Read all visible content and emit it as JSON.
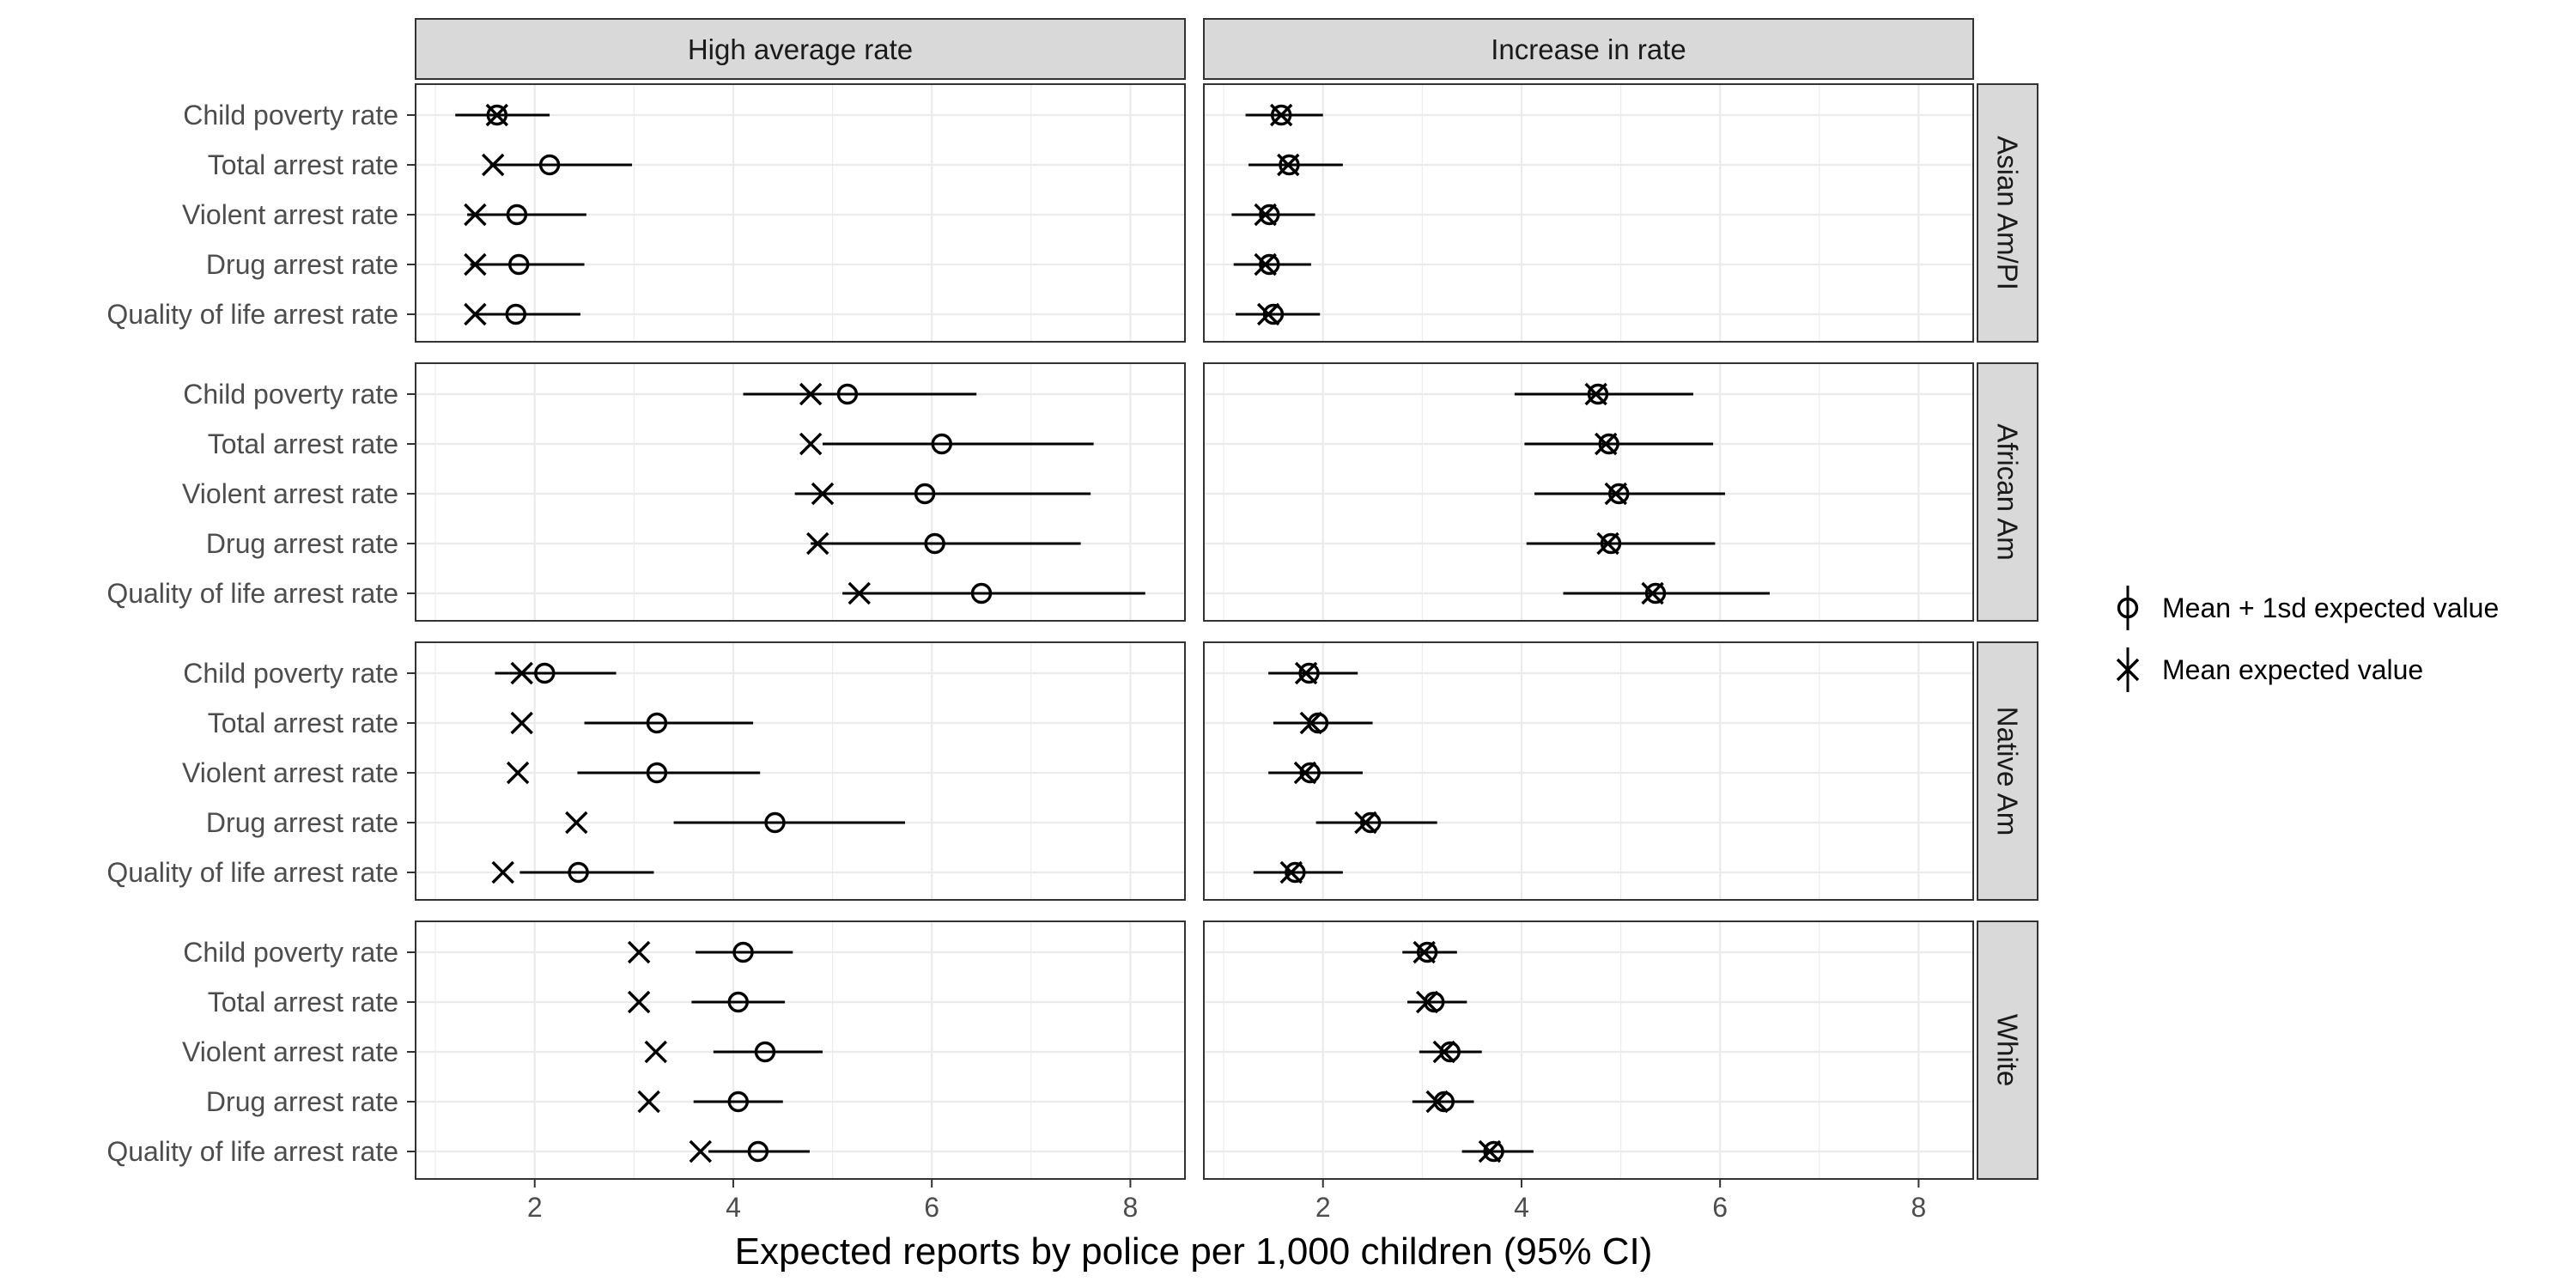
{
  "chart_data": {
    "type": "scatter",
    "xlabel": "Expected reports by police per 1,000 children (95% CI)",
    "xlim": [
      0.8,
      8.55
    ],
    "xticks": [
      2,
      4,
      6,
      8
    ],
    "columns": [
      "High average rate",
      "Increase in rate"
    ],
    "groups": [
      "Asian Am/PI",
      "African Am",
      "Native Am",
      "White"
    ],
    "categories": [
      "Child poverty rate",
      "Total arrest rate",
      "Violent arrest rate",
      "Drug arrest rate",
      "Quality of life arrest rate"
    ],
    "grid": true,
    "legend_position": "right",
    "legend": {
      "items": [
        {
          "marker": "circle",
          "label": "Mean + 1sd expected value"
        },
        {
          "marker": "x",
          "label": "Mean expected value"
        }
      ]
    },
    "series": [
      {
        "marker": "x",
        "group": "Asian Am/PI",
        "column": "High average rate",
        "values": [
          1.62,
          1.58,
          1.4,
          1.4,
          1.4
        ]
      },
      {
        "marker": "circle",
        "group": "Asian Am/PI",
        "column": "High average rate",
        "values": [
          1.62,
          2.15,
          1.82,
          1.84,
          1.81
        ],
        "ci_low": [
          1.2,
          1.55,
          1.32,
          1.35,
          1.38
        ],
        "ci_high": [
          2.15,
          2.98,
          2.52,
          2.5,
          2.46
        ]
      },
      {
        "marker": "x",
        "group": "Asian Am/PI",
        "column": "Increase in rate",
        "values": [
          1.58,
          1.65,
          1.42,
          1.42,
          1.45
        ]
      },
      {
        "marker": "circle",
        "group": "Asian Am/PI",
        "column": "Increase in rate",
        "values": [
          1.58,
          1.66,
          1.46,
          1.46,
          1.5
        ],
        "ci_low": [
          1.22,
          1.25,
          1.08,
          1.1,
          1.12
        ],
        "ci_high": [
          2.0,
          2.2,
          1.92,
          1.88,
          1.97
        ]
      },
      {
        "marker": "x",
        "group": "African Am",
        "column": "High average rate",
        "values": [
          4.78,
          4.78,
          4.9,
          4.85,
          5.27
        ]
      },
      {
        "marker": "circle",
        "group": "African Am",
        "column": "High average rate",
        "values": [
          5.15,
          6.1,
          5.93,
          6.03,
          6.5
        ],
        "ci_low": [
          4.1,
          4.9,
          4.62,
          4.78,
          5.1
        ],
        "ci_high": [
          6.45,
          7.63,
          7.6,
          7.5,
          8.15
        ]
      },
      {
        "marker": "x",
        "group": "African Am",
        "column": "Increase in rate",
        "values": [
          4.75,
          4.85,
          4.95,
          4.87,
          5.32
        ]
      },
      {
        "marker": "circle",
        "group": "African Am",
        "column": "Increase in rate",
        "values": [
          4.77,
          4.88,
          4.98,
          4.9,
          5.35
        ],
        "ci_low": [
          3.93,
          4.03,
          4.13,
          4.05,
          4.42
        ],
        "ci_high": [
          5.73,
          5.93,
          6.05,
          5.95,
          6.5
        ]
      },
      {
        "marker": "x",
        "group": "Native Am",
        "column": "High average rate",
        "values": [
          1.87,
          1.87,
          1.83,
          2.42,
          1.68
        ]
      },
      {
        "marker": "circle",
        "group": "Native Am",
        "column": "High average rate",
        "values": [
          2.1,
          3.23,
          3.23,
          4.42,
          2.44
        ],
        "ci_low": [
          1.6,
          2.5,
          2.43,
          3.4,
          1.85
        ],
        "ci_high": [
          2.82,
          4.2,
          4.27,
          5.73,
          3.2
        ]
      },
      {
        "marker": "x",
        "group": "Native Am",
        "column": "Increase in rate",
        "values": [
          1.83,
          1.88,
          1.82,
          2.43,
          1.68
        ]
      },
      {
        "marker": "circle",
        "group": "Native Am",
        "column": "Increase in rate",
        "values": [
          1.86,
          1.95,
          1.87,
          2.48,
          1.72
        ],
        "ci_low": [
          1.45,
          1.5,
          1.45,
          1.93,
          1.3
        ],
        "ci_high": [
          2.35,
          2.5,
          2.4,
          3.15,
          2.2
        ]
      },
      {
        "marker": "x",
        "group": "White",
        "column": "High average rate",
        "values": [
          3.05,
          3.05,
          3.22,
          3.15,
          3.67
        ]
      },
      {
        "marker": "circle",
        "group": "White",
        "column": "High average rate",
        "values": [
          4.1,
          4.05,
          4.32,
          4.05,
          4.25
        ],
        "ci_low": [
          3.62,
          3.58,
          3.8,
          3.6,
          3.75
        ],
        "ci_high": [
          4.6,
          4.52,
          4.9,
          4.5,
          4.77
        ]
      },
      {
        "marker": "x",
        "group": "White",
        "column": "Increase in rate",
        "values": [
          3.02,
          3.05,
          3.22,
          3.15,
          3.68
        ]
      },
      {
        "marker": "circle",
        "group": "White",
        "column": "Increase in rate",
        "values": [
          3.05,
          3.12,
          3.28,
          3.22,
          3.72
        ],
        "ci_low": [
          2.8,
          2.85,
          2.97,
          2.9,
          3.4
        ],
        "ci_high": [
          3.35,
          3.45,
          3.6,
          3.52,
          4.12
        ]
      }
    ]
  }
}
